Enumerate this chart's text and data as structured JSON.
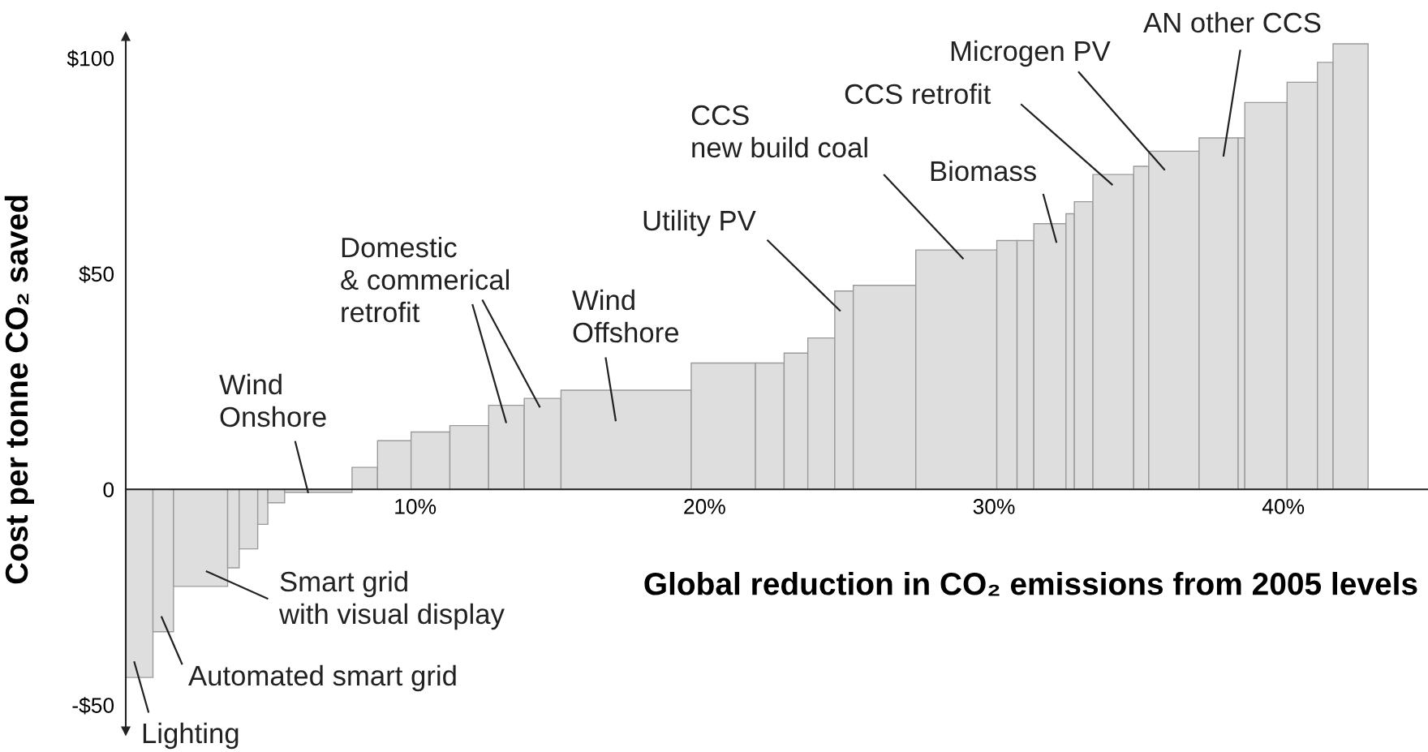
{
  "chart_data": {
    "type": "histogram",
    "xlabel": "Global reduction in CO₂ emissions from 2005 levels",
    "ylabel": "Cost per tonne CO₂ saved",
    "bins": [
      0,
      0.94,
      1.65,
      3.52,
      3.92,
      4.56,
      4.91,
      5.49,
      7.82,
      8.7,
      9.86,
      11.2,
      12.54,
      13.77,
      15.04,
      19.54,
      21.76,
      22.75,
      23.57,
      24.5,
      25.14,
      27.3,
      30.1,
      30.8,
      31.38,
      32.49,
      32.78,
      33.42,
      34.83,
      35.35,
      37.09,
      38.44,
      38.67,
      40.13,
      41.18,
      41.72,
      42.93
    ],
    "values": [
      -43.6,
      -33,
      -22.5,
      -18.2,
      -13.8,
      -8.1,
      -3.1,
      -0.7,
      5.1,
      11.3,
      13.3,
      14.8,
      19.5,
      21.1,
      23.0,
      29.3,
      29.3,
      31.6,
      35.1,
      46.0,
      47.3,
      55.5,
      57.7,
      57.7,
      61.6,
      63.9,
      66.7,
      73.0,
      74.9,
      78.4,
      81.5,
      81.5,
      89.7,
      94.4,
      99.0,
      103.3
    ],
    "color": "#dedede",
    "xlim": [
      0,
      45
    ],
    "ylim": [
      -56,
      105
    ],
    "xticks": [
      {
        "value": 10,
        "label": "10%"
      },
      {
        "value": 20,
        "label": "20%"
      },
      {
        "value": 30,
        "label": "30%"
      },
      {
        "value": 40,
        "label": "40%"
      }
    ],
    "yticks": [
      {
        "value": -50,
        "label": "-$50"
      },
      {
        "value": 0,
        "label": "0"
      },
      {
        "value": 50,
        "label": "$50"
      },
      {
        "value": 100,
        "label": "$100"
      }
    ],
    "annotations": [
      "Lighting",
      "Automated smart grid",
      "Smart grid\nwith visual display",
      {
        "text": "Wind\nOnshore",
        "x": 6.3,
        "y": -0.7
      },
      "Domestic\n& commerical\nretrofit",
      "Wind\nOffshore",
      "Utility PV",
      "CCS\nnew build coal",
      "Biomass",
      "CCS retrofit",
      "Microgen PV",
      "AN other CCS"
    ]
  }
}
